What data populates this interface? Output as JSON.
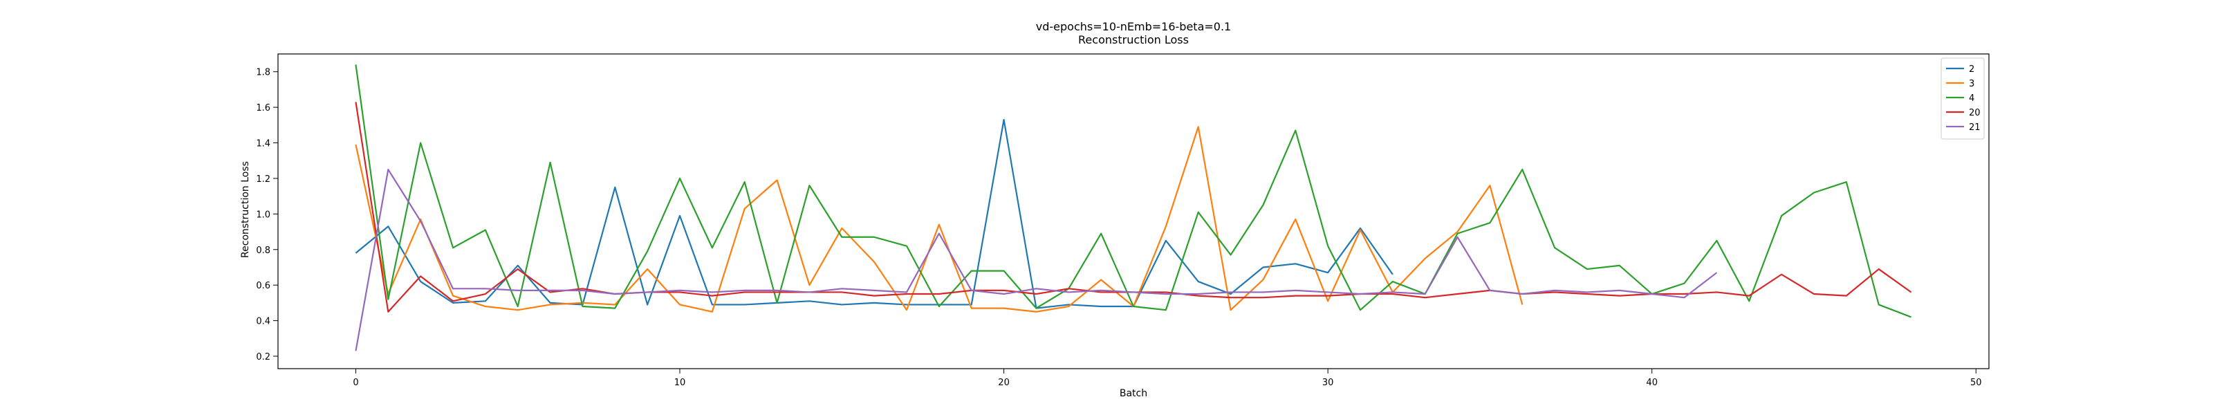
{
  "chart_data": {
    "type": "line",
    "title": "vd-epochs=10-nEmb=16-beta=0.1",
    "subtitle": "Reconstruction Loss",
    "xlabel": "Batch",
    "ylabel": "Reconstruction Loss",
    "xlim": [
      -2.4,
      50.4
    ],
    "ylim": [
      0.13,
      1.9
    ],
    "xticks": [
      "0",
      "10",
      "20",
      "30",
      "40",
      "50"
    ],
    "yticks": [
      "0.2",
      "0.4",
      "0.6",
      "0.8",
      "1.0",
      "1.2",
      "1.4",
      "1.6",
      "1.8"
    ],
    "grid": false,
    "legend_position": "top-right",
    "series": [
      {
        "name": "2",
        "color": "#1f77b4",
        "values": [
          0.78,
          0.93,
          0.62,
          0.5,
          0.51,
          0.71,
          0.5,
          0.49,
          1.15,
          0.49,
          0.99,
          0.49,
          0.49,
          0.5,
          0.51,
          0.49,
          0.5,
          0.49,
          0.49,
          0.49,
          1.53,
          0.47,
          0.49,
          0.48,
          0.48,
          0.85,
          0.62,
          0.55,
          0.7,
          0.72,
          0.67,
          0.92,
          0.66
        ]
      },
      {
        "name": "3",
        "color": "#ff7f0e",
        "values": [
          1.39,
          0.55,
          0.97,
          0.54,
          0.48,
          0.46,
          0.49,
          0.5,
          0.49,
          0.69,
          0.49,
          0.45,
          1.03,
          1.19,
          0.6,
          0.92,
          0.73,
          0.46,
          0.94,
          0.47,
          0.47,
          0.45,
          0.48,
          0.63,
          0.48,
          0.93,
          1.49,
          0.46,
          0.63,
          0.97,
          0.51,
          0.91,
          0.56,
          0.75,
          0.9,
          1.16,
          0.49
        ]
      },
      {
        "name": "4",
        "color": "#2ca02c",
        "values": [
          1.84,
          0.52,
          1.4,
          0.81,
          0.91,
          0.48,
          1.29,
          0.48,
          0.47,
          0.79,
          1.2,
          0.81,
          1.18,
          0.5,
          1.16,
          0.87,
          0.87,
          0.82,
          0.48,
          0.68,
          0.68,
          0.47,
          0.58,
          0.89,
          0.48,
          0.46,
          1.01,
          0.77,
          1.05,
          1.47,
          0.82,
          0.46,
          0.62,
          0.55,
          0.89,
          0.95,
          1.25,
          0.81,
          0.69,
          0.71,
          0.55,
          0.61,
          0.85,
          0.51,
          0.99,
          1.12,
          1.18,
          0.49,
          0.42
        ]
      },
      {
        "name": "20",
        "color": "#d62728",
        "values": [
          1.63,
          0.45,
          0.65,
          0.51,
          0.55,
          0.69,
          0.56,
          0.58,
          0.55,
          0.56,
          0.56,
          0.54,
          0.56,
          0.56,
          0.56,
          0.56,
          0.54,
          0.55,
          0.55,
          0.57,
          0.57,
          0.55,
          0.58,
          0.56,
          0.56,
          0.56,
          0.54,
          0.53,
          0.53,
          0.54,
          0.54,
          0.55,
          0.55,
          0.53,
          0.55,
          0.57,
          0.55,
          0.56,
          0.55,
          0.54,
          0.55,
          0.55,
          0.56,
          0.54,
          0.66,
          0.55,
          0.54,
          0.69,
          0.56
        ]
      },
      {
        "name": "21",
        "color": "#9467bd",
        "values": [
          0.23,
          1.25,
          0.96,
          0.58,
          0.58,
          0.57,
          0.57,
          0.57,
          0.55,
          0.56,
          0.57,
          0.56,
          0.57,
          0.57,
          0.56,
          0.58,
          0.57,
          0.56,
          0.89,
          0.57,
          0.55,
          0.58,
          0.56,
          0.57,
          0.56,
          0.55,
          0.55,
          0.56,
          0.56,
          0.57,
          0.56,
          0.55,
          0.56,
          0.55,
          0.87,
          0.57,
          0.55,
          0.57,
          0.56,
          0.57,
          0.55,
          0.53,
          0.67
        ]
      }
    ]
  }
}
